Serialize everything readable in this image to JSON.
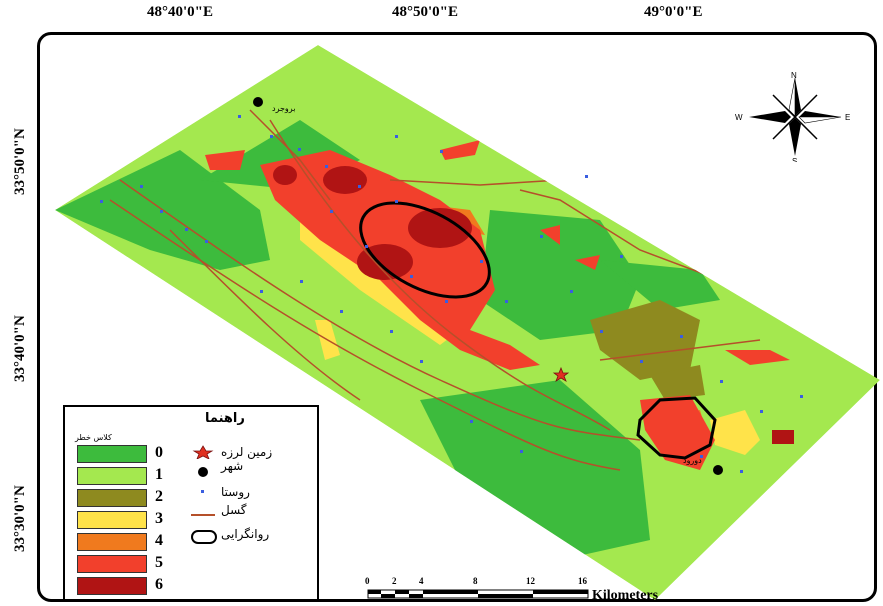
{
  "top_labels": [
    "48°40'0\"E",
    "48°50'0\"E",
    "49°0'0\"E"
  ],
  "left_labels": [
    "33°50'0\"N",
    "33°40'0\"N",
    "33°30'0\"N"
  ],
  "map_labels": {
    "city1": "بروجرد",
    "city2": "دورود"
  },
  "compass": {
    "n": "N",
    "s": "S",
    "e": "E",
    "w": "W"
  },
  "legend": {
    "title": "راهنما",
    "subtitle": "کلاس خطر",
    "classes": [
      {
        "value": "0",
        "color": "#3dbb3d"
      },
      {
        "value": "1",
        "color": "#a4e84f"
      },
      {
        "value": "2",
        "color": "#8e8a1f"
      },
      {
        "value": "3",
        "color": "#ffe34a"
      },
      {
        "value": "4",
        "color": "#f07a1e"
      },
      {
        "value": "5",
        "color": "#f2402c"
      },
      {
        "value": "6",
        "color": "#b01414"
      }
    ],
    "symbols": [
      {
        "icon": "star-icon",
        "label": "زمین لرزه"
      },
      {
        "icon": "dot-icon",
        "label": "شهر"
      },
      {
        "icon": "small-dot-icon",
        "label": "روستا"
      },
      {
        "icon": "line-icon",
        "label": "گسل"
      },
      {
        "icon": "ellipse-icon",
        "label": "روانگرایی"
      }
    ]
  },
  "scale": {
    "ticks": [
      "0",
      "2",
      "4",
      "8",
      "12",
      "16"
    ],
    "unit": "Kilometers"
  },
  "colors": {
    "fault": "#b5502a",
    "village": "#3a5ee0",
    "outline": "#000000"
  }
}
